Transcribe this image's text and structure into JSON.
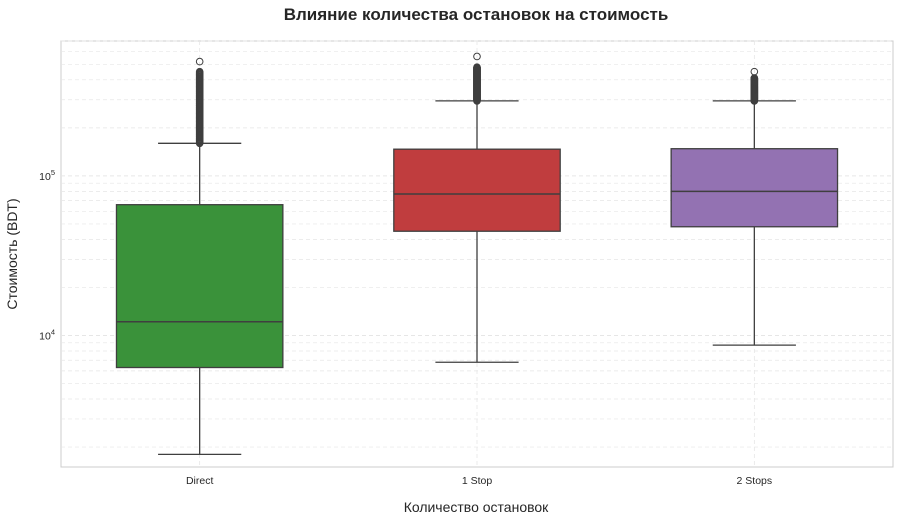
{
  "chart_data": {
    "type": "box",
    "title": "Влияние количества остановок на стоимость",
    "xlabel": "Количество остановок",
    "ylabel": "Стоимость (BDT)",
    "y_scale": "log",
    "ylim": [
      1500,
      700000
    ],
    "y_ticks": [
      {
        "value": 10000,
        "base": "10",
        "exp": "4"
      },
      {
        "value": 100000,
        "base": "10",
        "exp": "5"
      }
    ],
    "grid": true,
    "categories": [
      "Direct",
      "1 Stop",
      "2 Stops"
    ],
    "boxes": [
      {
        "category": "Direct",
        "color": "#3a923a",
        "whisker_low": 1800,
        "q1": 6300,
        "median": 12200,
        "q3": 66000,
        "whisker_high": 160000,
        "outliers_range": [
          160000,
          450000
        ],
        "outlier_max": 520000
      },
      {
        "category": "1 Stop",
        "color": "#c03d3e",
        "whisker_low": 6800,
        "q1": 45000,
        "median": 77000,
        "q3": 147000,
        "whisker_high": 295000,
        "outliers_range": [
          295000,
          480000
        ],
        "outlier_max": 560000
      },
      {
        "category": "2 Stops",
        "color": "#9372b2",
        "whisker_low": 8700,
        "q1": 48000,
        "median": 80000,
        "q3": 148000,
        "whisker_high": 295000,
        "outliers_range": [
          295000,
          410000
        ],
        "outlier_max": 450000
      }
    ]
  }
}
